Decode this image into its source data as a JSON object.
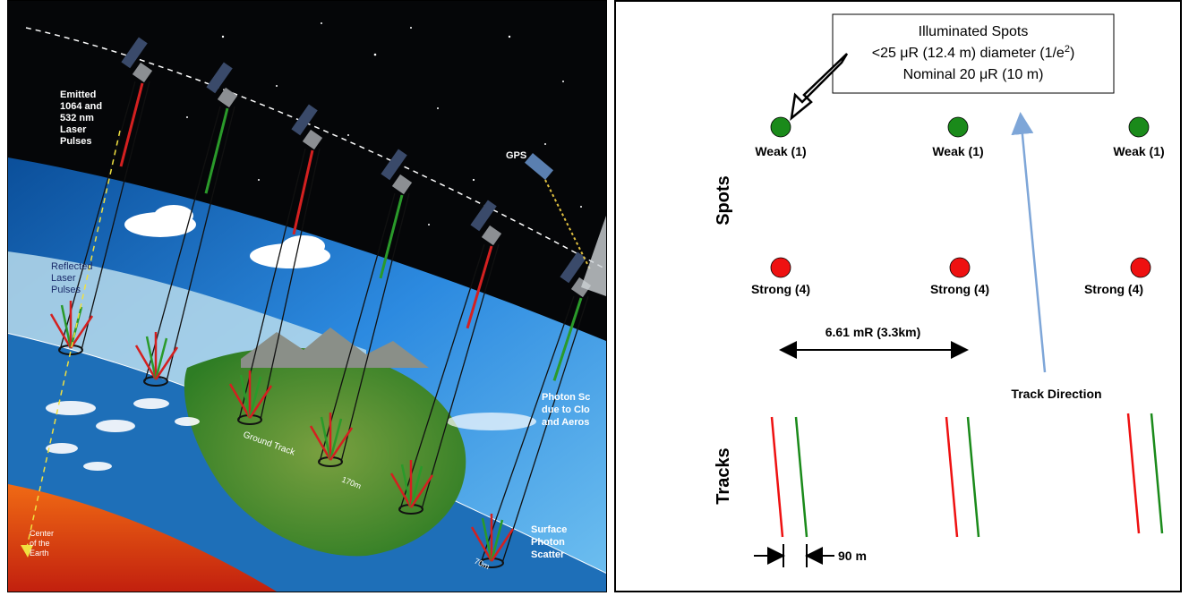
{
  "left": {
    "emitted_label": [
      "Emitted",
      "1064 and",
      "532 nm",
      "Laser",
      "Pulses"
    ],
    "gps_label": "GPS",
    "reflected_label": [
      "Reflected",
      "Laser",
      "Pulses"
    ],
    "ground_track_label": "Ground Track",
    "spacing_170": "170m",
    "spacing_70": "70m",
    "photon_scatter_label": [
      "Photon Sc",
      "due to Clo",
      "and Aeros"
    ],
    "surface_scatter_label": [
      "Surface",
      "Photon",
      "Scatter"
    ],
    "center_earth_label": [
      "Center",
      "of the",
      "Earth"
    ],
    "colors": {
      "space": "#050608",
      "atmosphere": "#1f7fd0",
      "land": "#3d8a2a",
      "earth_core": "#d84016",
      "red_beam": "#d42020",
      "green_beam": "#2a9a2a"
    }
  },
  "right": {
    "callout": {
      "line1": "Illuminated Spots",
      "line2_pre": "<25 μR (12.4 m) diameter (1/e",
      "line2_sup": "2",
      "line2_post": ")",
      "line3": "Nominal 20 μR (10 m)"
    },
    "spots_label": "Spots",
    "tracks_label": "Tracks",
    "weak_label": "Weak (1)",
    "strong_label": "Strong (4)",
    "separation_label": "6.61 mR (3.3km)",
    "track_direction_label": "Track Direction",
    "pair_spacing_label": "90 m",
    "colors": {
      "weak": "#1a8a1a",
      "strong": "#ee1111",
      "red_track": "#ee1111",
      "green_track": "#1a8a1a",
      "direction_arrow": "#7ea6d8"
    }
  }
}
